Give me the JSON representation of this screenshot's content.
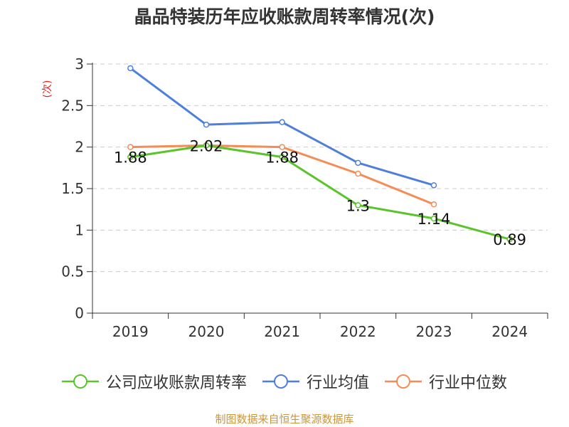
{
  "chart_data": {
    "type": "line",
    "title": "晶品特装历年应收账款周转率情况(次)",
    "ylabel": "(次)",
    "xlabel": "",
    "categories": [
      "2019",
      "2020",
      "2021",
      "2022",
      "2023",
      "2024"
    ],
    "ylim": [
      0,
      3
    ],
    "yticks": [
      0,
      0.5,
      1,
      1.5,
      2,
      2.5,
      3
    ],
    "ytick_labels": [
      "0",
      "0.5",
      "1",
      "1.5",
      "2",
      "2.5",
      "3"
    ],
    "grid": true,
    "legend_position": "bottom",
    "series": [
      {
        "name": "公司应收账款周转率",
        "color": "#5ac42a",
        "values": [
          1.88,
          2.02,
          1.88,
          1.3,
          1.14,
          0.89
        ],
        "labels": [
          "1.88",
          "2.02",
          "1.88",
          "1.3",
          "1.14",
          "0.89"
        ],
        "show_labels": true
      },
      {
        "name": "行业均值",
        "color": "#4e7fdb",
        "values": [
          2.95,
          2.27,
          2.3,
          1.81,
          1.54,
          null
        ],
        "show_labels": false
      },
      {
        "name": "行业中位数",
        "color": "#f58c55",
        "values": [
          2.0,
          2.02,
          2.0,
          1.68,
          1.31,
          null
        ],
        "show_labels": false
      }
    ]
  },
  "source": "制图数据来自恒生聚源数据库",
  "colors": {
    "axis": "#333333",
    "grid": "#cccccc",
    "ylabel": "#e02020"
  }
}
